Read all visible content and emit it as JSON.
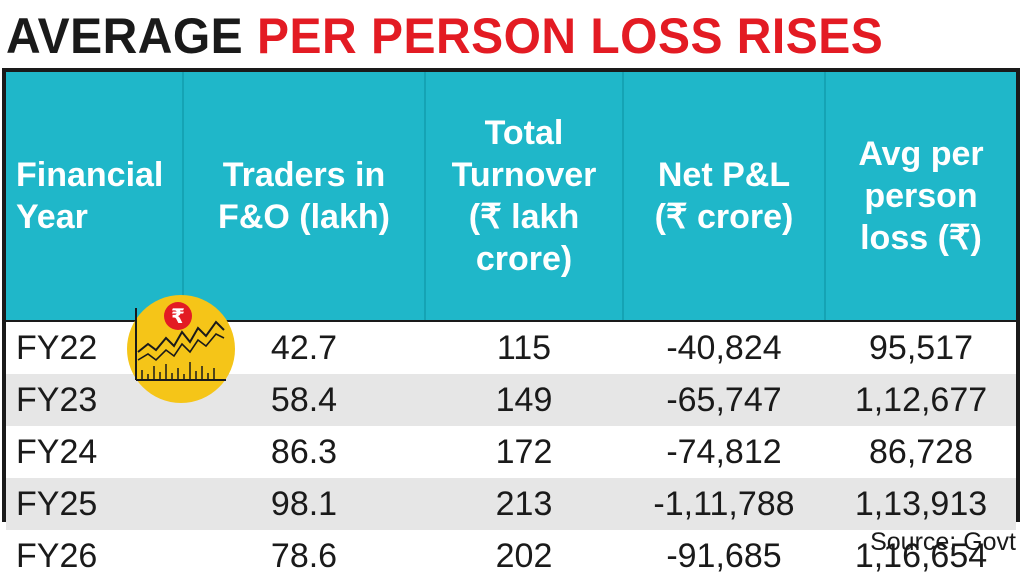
{
  "title": {
    "part1": "AVERAGE",
    "part2": "PER PERSON LOSS RISES"
  },
  "colors": {
    "header_bg": "#1fb7c9",
    "title_red": "#e31b23",
    "title_dark": "#1a1a1a",
    "row_alt": "#e6e6e6",
    "badge_yellow": "#f5c518"
  },
  "icons": {
    "badge": "rupee-stock-chart-icon"
  },
  "chart_data": {
    "type": "table",
    "title": "AVERAGE PER PERSON LOSS RISES",
    "columns": [
      "Financial\nYear",
      "Traders in\nF&O (lakh)",
      "Total\nTurnover\n(₹ lakh\ncrore)",
      "Net P&L\n(₹ crore)",
      "Avg per\nperson\nloss (₹)"
    ],
    "rows": [
      [
        "FY22",
        "42.7",
        "115",
        "-40,824",
        "95,517"
      ],
      [
        "FY23",
        "58.4",
        "149",
        "-65,747",
        "1,12,677"
      ],
      [
        "FY24",
        "86.3",
        "172",
        "-74,812",
        "86,728"
      ],
      [
        "FY25",
        "98.1",
        "213",
        "-1,11,788",
        "1,13,913"
      ],
      [
        "FY26",
        "78.6",
        "202",
        "-91,685",
        "1,16,654"
      ]
    ],
    "source": "Source: Govt"
  }
}
